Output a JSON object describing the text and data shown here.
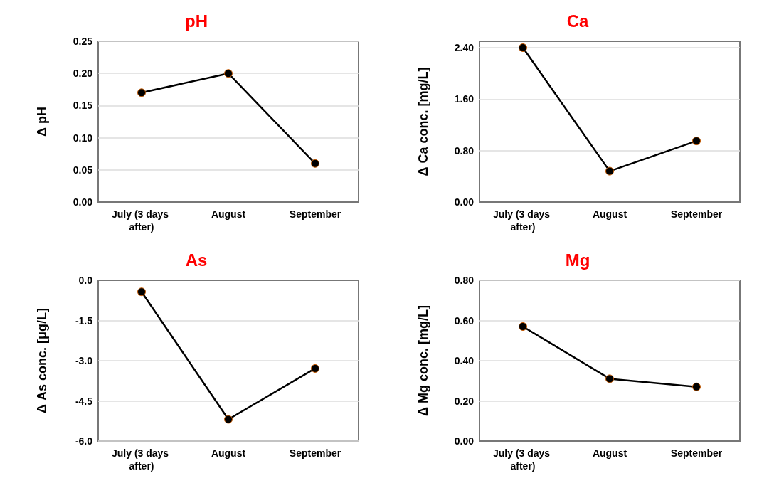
{
  "chart_data": [
    {
      "type": "line",
      "title": "pH",
      "ylabel": "Δ pH",
      "categories": [
        "July (3 days after)",
        "August",
        "September"
      ],
      "series": [
        {
          "color": "#000000",
          "values": [
            0.17,
            0.2,
            0.06
          ]
        }
      ],
      "ylim": [
        0,
        0.25
      ],
      "yticks": [
        {
          "value": 0,
          "label": "0.00"
        },
        0.05,
        {
          "value": 0.1,
          "label": "0.10"
        },
        0.15,
        {
          "value": 0.2,
          "label": "0.20"
        },
        0.25
      ],
      "grid": "y",
      "marker": "circle",
      "line_style": "solid"
    },
    {
      "type": "line",
      "title": "Ca",
      "ylabel": "Δ Ca conc. [mg/L]",
      "categories": [
        "July (3 days after)",
        "August",
        "September"
      ],
      "series": [
        {
          "color": "#000000",
          "values": [
            2.4,
            0.48,
            0.95
          ]
        }
      ],
      "ylim": [
        0,
        2.5
      ],
      "yticks": [
        {
          "value": 0,
          "label": "0.00"
        },
        {
          "value": 0.8,
          "label": "0.80"
        },
        {
          "value": 1.6,
          "label": "1.60"
        },
        {
          "value": 2.4,
          "label": "2.40"
        }
      ],
      "grid": "y",
      "marker": "circle",
      "line_style": "solid"
    },
    {
      "type": "line",
      "title": "As",
      "ylabel": "Δ As conc. [μg/L]",
      "categories": [
        "July (3 days after)",
        "August",
        "September"
      ],
      "series": [
        {
          "color": "#000000",
          "values": [
            -0.43,
            -5.19,
            -3.29
          ]
        }
      ],
      "ylim": [
        -6,
        0
      ],
      "yticks": [
        {
          "value": -6,
          "label": "-6.0"
        },
        -4.5,
        {
          "value": -3,
          "label": "-3.0"
        },
        -1.5,
        {
          "value": 0,
          "label": "0.0"
        }
      ],
      "grid": "y",
      "marker": "circle",
      "line_style": "solid"
    },
    {
      "type": "line",
      "title": "Mg",
      "ylabel": "Δ Mg conc. [mg/L]",
      "categories": [
        "July (3 days after)",
        "August",
        "September"
      ],
      "series": [
        {
          "color": "#000000",
          "values": [
            0.57,
            0.31,
            0.27
          ]
        }
      ],
      "ylim": [
        0,
        0.8
      ],
      "yticks": [
        {
          "value": 0,
          "label": "0.00"
        },
        {
          "value": 0.2,
          "label": "0.20"
        },
        {
          "value": 0.4,
          "label": "0.40"
        },
        {
          "value": 0.6,
          "label": "0.60"
        },
        {
          "value": 0.8,
          "label": "0.80"
        }
      ],
      "grid": "y",
      "marker": "circle",
      "line_style": "solid"
    }
  ]
}
